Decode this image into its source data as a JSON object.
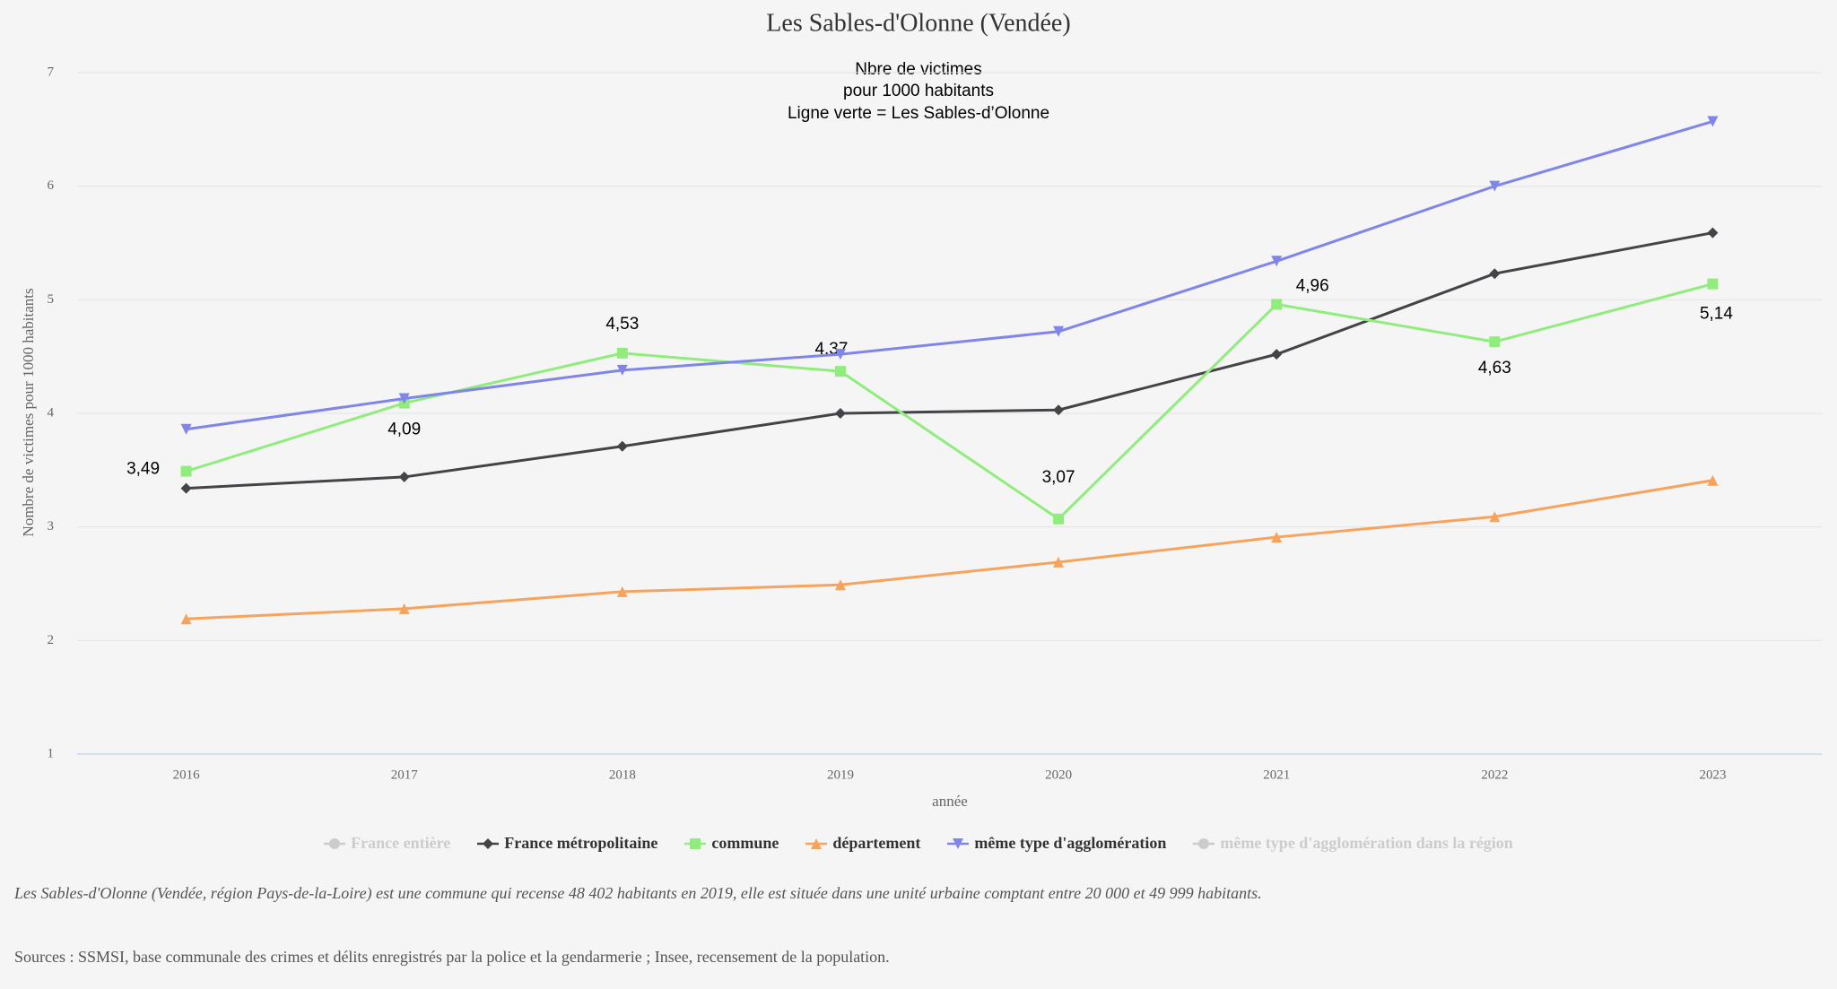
{
  "chart_data": {
    "type": "line",
    "title": "Les Sables-d'Olonne (Vendée)",
    "subtitle": [
      "Nbre de victimes",
      "pour 1000 habitants",
      "Ligne verte = Les Sables-d’Olonne"
    ],
    "y_label": "Nombre de victimes pour 1000 habitants",
    "x_label": "année",
    "categories": [
      "2016",
      "2017",
      "2018",
      "2019",
      "2020",
      "2021",
      "2022",
      "2023"
    ],
    "ylim": [
      1,
      7
    ],
    "yticks": [
      1,
      2,
      3,
      4,
      5,
      6,
      7
    ],
    "grid": true,
    "series": [
      {
        "name": "France entière",
        "color": "#cccccc",
        "marker": "circle",
        "hidden": true
      },
      {
        "name": "France métropolitaine",
        "color": "#434348",
        "marker": "diamond",
        "values": [
          3.34,
          3.44,
          3.71,
          4.0,
          4.03,
          4.52,
          5.23,
          5.59
        ]
      },
      {
        "name": "commune",
        "color": "#90ed7d",
        "marker": "square",
        "values": [
          3.49,
          4.09,
          4.53,
          4.37,
          3.07,
          4.96,
          4.63,
          5.14
        ],
        "value_labels": [
          "3,49",
          "4,09",
          "4,53",
          "4,37",
          "3,07",
          "4,96",
          "4,63",
          "5,14"
        ]
      },
      {
        "name": "département",
        "color": "#f7a35c",
        "marker": "triangle",
        "values": [
          2.19,
          2.28,
          2.43,
          2.49,
          2.69,
          2.91,
          3.09,
          3.41
        ]
      },
      {
        "name": "même type d'agglomération",
        "color": "#8085e9",
        "marker": "triangle-down",
        "values": [
          3.86,
          4.13,
          4.38,
          4.52,
          4.72,
          5.34,
          6.0,
          6.57
        ]
      },
      {
        "name": "même type d'agglomération dans la région",
        "color": "#cccccc",
        "marker": "circle",
        "hidden": true
      }
    ]
  },
  "footnote": "Les Sables-d'Olonne (Vendée, région Pays-de-la-Loire) est une commune qui recense 48 402 habitants en 2019, elle est située dans une unité urbaine comptant entre 20 000 et 49 999 habitants.",
  "source": "Sources : SSMSI, base communale des crimes et délits enregistrés par la police et la gendarmerie ; Insee, recensement de la population."
}
